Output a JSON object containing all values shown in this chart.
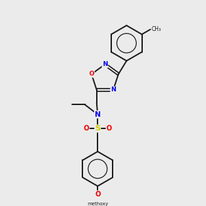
{
  "background_color": "#ebebeb",
  "bond_color": "#1a1a1a",
  "atom_colors": {
    "N": "#0000ee",
    "O": "#ee0000",
    "S": "#cccc00",
    "C": "#1a1a1a"
  },
  "figsize": [
    3.0,
    3.0
  ],
  "dpi": 100
}
